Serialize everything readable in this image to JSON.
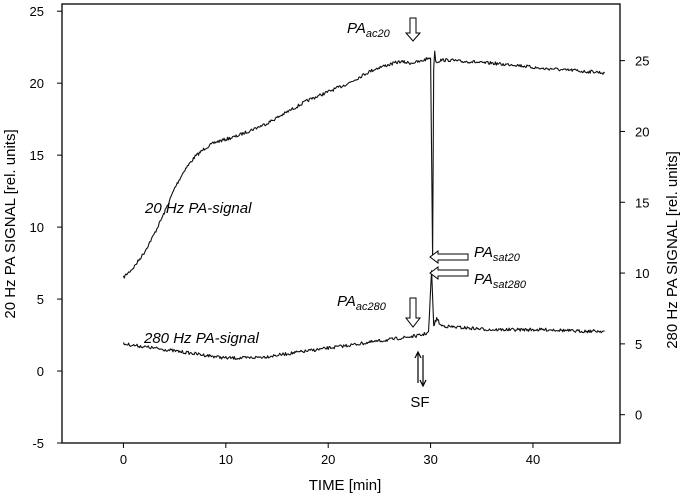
{
  "chart_data": {
    "type": "line",
    "title": "",
    "xlabel": "TIME [min]",
    "ylabel_left": "20 Hz PA SIGNAL [rel. units]",
    "ylabel_right": "280 Hz PA SIGNAL [rel. units]",
    "xlim": [
      -6,
      48.5
    ],
    "ylim_left": [
      -5,
      25.5
    ],
    "ylim_right": [
      -2,
      29
    ],
    "x_ticks": [
      0,
      10,
      20,
      30,
      40
    ],
    "y_ticks_left": [
      -5,
      0,
      5,
      10,
      15,
      20,
      25
    ],
    "y_ticks_right": [
      0,
      5,
      10,
      15,
      20,
      25
    ],
    "x_tick_labels": [
      "0",
      "10",
      "20",
      "30",
      "40"
    ],
    "y_tick_labels_left": [
      "-5",
      "0",
      "5",
      "10",
      "15",
      "20",
      "25"
    ],
    "y_tick_labels_right": [
      "0",
      "5",
      "10",
      "15",
      "20",
      "25"
    ],
    "series": [
      {
        "name": "20 Hz PA-signal",
        "axis": "left",
        "x": [
          0,
          1,
          2,
          3,
          4,
          5,
          6,
          7,
          8,
          9,
          10,
          11,
          12,
          13,
          14,
          15,
          16,
          17,
          18,
          19,
          20,
          21,
          22,
          23,
          24,
          25,
          26,
          27,
          28,
          29,
          30,
          30.2,
          30.3,
          30.4,
          30.5,
          30.7,
          31,
          32,
          33,
          34,
          35,
          36,
          37,
          38,
          39,
          40,
          41,
          42,
          43,
          44,
          45,
          46,
          47
        ],
        "values": [
          6.5,
          7.2,
          8.2,
          9.5,
          11.0,
          12.7,
          14.0,
          14.9,
          15.5,
          15.9,
          16.1,
          16.3,
          16.6,
          16.9,
          17.2,
          17.6,
          18.0,
          18.4,
          18.8,
          19.1,
          19.4,
          19.7,
          20.0,
          20.4,
          20.8,
          21.1,
          21.3,
          21.5,
          21.4,
          21.5,
          21.8,
          8.0,
          21.0,
          22.3,
          21.5,
          21.5,
          21.6,
          21.6,
          21.5,
          21.5,
          21.4,
          21.4,
          21.3,
          21.3,
          21.2,
          21.1,
          21.0,
          21.0,
          20.9,
          20.9,
          20.8,
          20.8,
          20.7
        ]
      },
      {
        "name": "280 Hz PA-signal",
        "axis": "right",
        "x": [
          0,
          2,
          4,
          6,
          8,
          10,
          12,
          14,
          16,
          18,
          20,
          22,
          24,
          26,
          28,
          29,
          29.8,
          30.1,
          30.3,
          30.6,
          31,
          32,
          34,
          36,
          38,
          40,
          42,
          44,
          46,
          47
        ],
        "values": [
          5.0,
          4.8,
          4.6,
          4.4,
          4.2,
          4.0,
          4.0,
          4.1,
          4.3,
          4.5,
          4.7,
          4.9,
          5.1,
          5.3,
          5.5,
          5.6,
          5.8,
          10.2,
          6.3,
          6.8,
          6.3,
          6.2,
          6.1,
          6.0,
          6.0,
          6.0,
          6.0,
          5.9,
          5.9,
          5.9
        ]
      }
    ],
    "annotations": [
      {
        "base": "PA",
        "sub": "ac20"
      },
      {
        "base": "PA",
        "sub": "sat20"
      },
      {
        "base": "PA",
        "sub": "sat280"
      },
      {
        "base": "PA",
        "sub": "ac280"
      },
      {
        "base": "SF",
        "sub": ""
      },
      {
        "base": "20 Hz PA-signal",
        "sub": ""
      },
      {
        "base": "280 Hz PA-signal",
        "sub": ""
      }
    ]
  }
}
